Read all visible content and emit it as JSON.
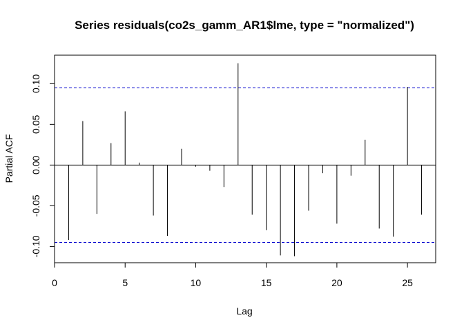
{
  "chart_data": {
    "type": "bar",
    "title": "Series  residuals(co2s_gamm_AR1$lme, type = \"normalized\")",
    "xlabel": "Lag",
    "ylabel": "Partial ACF",
    "xlim": [
      0,
      27
    ],
    "ylim": [
      -0.12,
      0.135
    ],
    "x_ticks": [
      0,
      5,
      10,
      15,
      20,
      25
    ],
    "x_tick_labels": [
      "0",
      "5",
      "10",
      "15",
      "20",
      "25"
    ],
    "y_ticks": [
      -0.1,
      -0.05,
      0.0,
      0.05,
      0.1
    ],
    "y_tick_labels": [
      "-0.10",
      "-0.05",
      "0.00",
      "0.05",
      "0.10"
    ],
    "confidence_bounds": [
      0.095,
      -0.095
    ],
    "colors": {
      "bars": "#000000",
      "bounds": "#0000CD",
      "zero_line": "#000000"
    },
    "x": [
      1,
      2,
      3,
      4,
      5,
      6,
      7,
      8,
      9,
      10,
      11,
      12,
      13,
      14,
      15,
      16,
      17,
      18,
      19,
      20,
      21,
      22,
      23,
      24,
      25,
      26
    ],
    "values": [
      -0.092,
      0.054,
      -0.06,
      0.027,
      0.066,
      0.003,
      -0.062,
      -0.087,
      0.02,
      -0.002,
      -0.007,
      -0.027,
      0.125,
      -0.061,
      -0.08,
      -0.111,
      -0.112,
      -0.056,
      -0.01,
      -0.072,
      -0.013,
      0.031,
      -0.078,
      -0.088,
      0.096,
      -0.061
    ]
  }
}
